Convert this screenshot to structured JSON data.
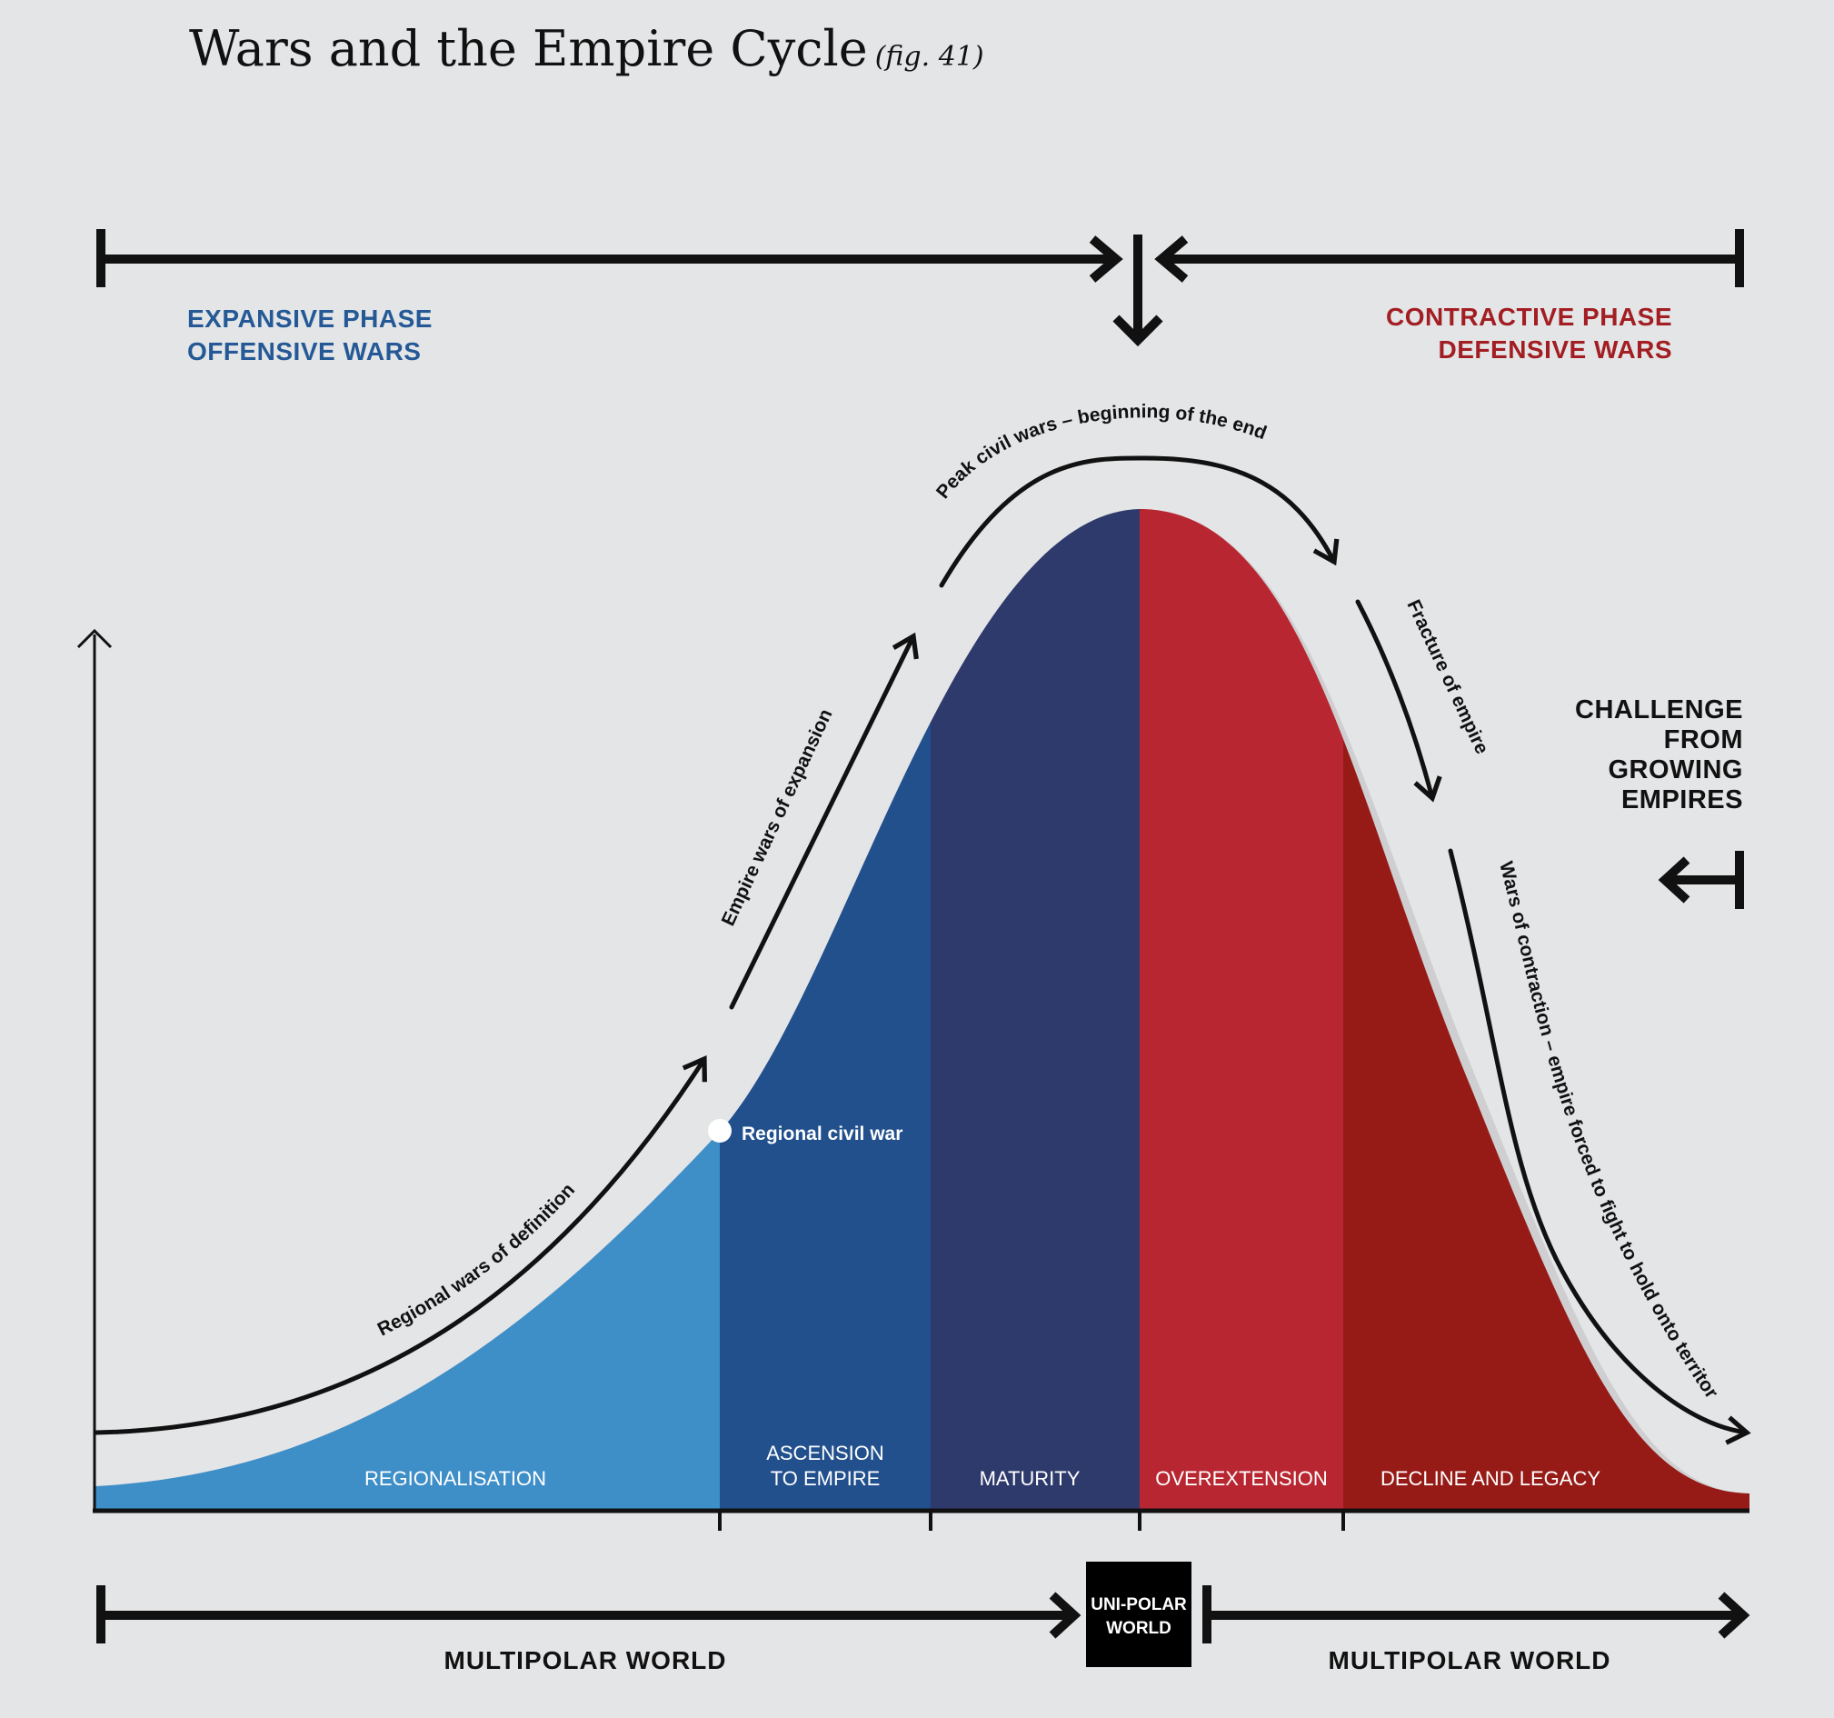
{
  "title": "Wars and the Empire Cycle",
  "fig_ref": "(fig. 41)",
  "phases": {
    "expansive": {
      "line1": "EXPANSIVE PHASE",
      "line2": "OFFENSIVE WARS",
      "color": "#245996"
    },
    "contractive": {
      "line1": "CONTRACTIVE PHASE",
      "line2": "DEFENSIVE WARS",
      "color": "#a21e22"
    }
  },
  "stages": [
    {
      "label": "REGIONALISATION",
      "color": "#3e8ec8"
    },
    {
      "label": "ASCENSION",
      "label2": "TO EMPIRE",
      "color": "#21508d"
    },
    {
      "label": "MATURITY",
      "color": "#2e3a6b"
    },
    {
      "label": "OVEREXTENSION",
      "color": "#b82731"
    },
    {
      "label": "DECLINE AND LEGACY",
      "color": "#961b17"
    }
  ],
  "annotations": {
    "regional_wars": "Regional  wars of definition",
    "regional_civil_war": "Regional civil war",
    "empire_wars": "Empire wars of expansion",
    "peak_civil_wars": "Peak civil wars – beginning of the end",
    "fracture": "Fracture of empire",
    "contraction": "Wars of contraction – empire forced to fight to hold onto territory"
  },
  "challenge": [
    "CHALLENGE",
    "FROM",
    "GROWING",
    "EMPIRES"
  ],
  "worlds": {
    "left": "MULTIPOLAR WORLD",
    "center_line1": "UNI-POLAR",
    "center_line2": "WORLD",
    "right": "MULTIPOLAR WORLD"
  }
}
